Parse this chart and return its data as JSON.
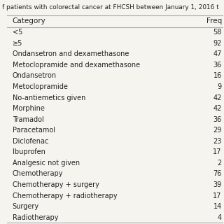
{
  "title": "f patients with colorectal cancer at FHCSH between January 1, 2016 t",
  "col1_header": "Category",
  "col2_header": "Freq",
  "rows": [
    [
      "<5",
      "58"
    ],
    [
      "≥5",
      "92"
    ],
    [
      "Ondansetron and dexamethasone",
      "47"
    ],
    [
      "Metoclopramide and dexamethasone",
      "36"
    ],
    [
      "Ondansetron",
      "16"
    ],
    [
      "Metoclopramide",
      "9"
    ],
    [
      "No-antiemetics given",
      "42"
    ],
    [
      "Morphine",
      "42"
    ],
    [
      "Tramadol",
      "36"
    ],
    [
      "Paracetamol",
      "29"
    ],
    [
      "Diclofenac",
      "23"
    ],
    [
      "Ibuprofen",
      "17"
    ],
    [
      "Analgesic not given",
      "2"
    ],
    [
      "Chemotherapy",
      "76"
    ],
    [
      "Chemotherapy + surgery",
      "39"
    ],
    [
      "Chemotherapy + radiotherapy",
      "17"
    ],
    [
      "Surgery",
      "14"
    ],
    [
      "Radiotherapy",
      "4"
    ]
  ],
  "bg_color": "#f5f4ef",
  "font_size": 7.0,
  "title_font_size": 6.4,
  "header_font_size": 7.5,
  "line_color": "#aaaaaa",
  "text_color": "#222222"
}
